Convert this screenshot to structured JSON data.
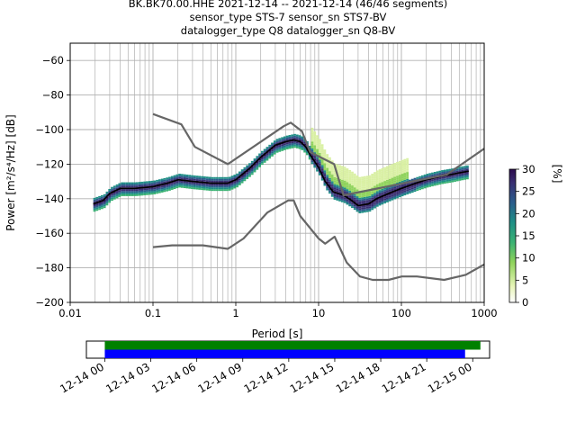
{
  "title": {
    "line1": "BK.BK70.00.HHE   2021-12-14 -- 2021-12-14  (46/46 segments)",
    "line2": "sensor_type STS-7 sensor_sn STS7-BV",
    "line3": "datalogger_type Q8 datalogger_sn Q8-BV"
  },
  "colors": {
    "mode_line": "#000000",
    "noise_model": "#666666",
    "grid": "#b0b0b0",
    "bar_green": "#008000",
    "bar_blue": "#0000ff",
    "colormap": [
      "#ffffff",
      "#d9f0a3",
      "#8fd35b",
      "#3bb273",
      "#1f8f86",
      "#2b5d8c",
      "#3a2f72",
      "#2d0b4e"
    ]
  },
  "chart_data": [
    {
      "type": "heatmap",
      "subtype": "probabilistic power spectral density",
      "xlabel": "Period [s]",
      "ylabel": "Power [m²/s⁴/Hz] [dB]",
      "x_scale": "log",
      "xlim": [
        0.01,
        1000
      ],
      "ylim": [
        -200,
        -50
      ],
      "x_ticks": [
        0.01,
        0.1,
        1,
        10,
        100,
        1000
      ],
      "x_tick_labels": [
        "0.01",
        "0.1",
        "1",
        "10",
        "100",
        "1000"
      ],
      "y_ticks": [
        -200,
        -180,
        -160,
        -140,
        -120,
        -100,
        -80,
        -60
      ],
      "y_tick_labels": [
        "−200",
        "−180",
        "−160",
        "−140",
        "−120",
        "−100",
        "−80",
        "−60"
      ],
      "grid": true,
      "colorbar": {
        "label": "[%]",
        "range": [
          0,
          30
        ],
        "ticks": [
          0,
          5,
          10,
          15,
          20,
          25,
          30
        ],
        "tick_labels": [
          "0",
          "5",
          "10",
          "15",
          "20",
          "25",
          "30"
        ]
      },
      "series": [
        {
          "role": "mode",
          "x": [
            0.019,
            0.025,
            0.03,
            0.04,
            0.06,
            0.1,
            0.15,
            0.2,
            0.3,
            0.5,
            0.8,
            1.0,
            1.5,
            2.0,
            3.0,
            4.0,
            5.0,
            6.0,
            7.0,
            8.0,
            10.0,
            12.0,
            15.0,
            20.0,
            25.0,
            30.0,
            40.0,
            50.0,
            70.0,
            100.0,
            150.0,
            200.0,
            300.0,
            400.0,
            500.0,
            650.0
          ],
          "y": [
            -143,
            -141,
            -137,
            -134,
            -134,
            -133,
            -131,
            -129,
            -130,
            -131,
            -131,
            -129,
            -122,
            -116,
            -109,
            -107,
            -106,
            -107,
            -110,
            -115,
            -122,
            -130,
            -136,
            -138,
            -141,
            -144,
            -143,
            -140,
            -137,
            -134,
            -131,
            -129,
            -127,
            -126,
            -125,
            -124
          ]
        },
        {
          "role": "high noise model",
          "x": [
            0.1,
            0.22,
            0.32,
            0.8,
            3.8,
            4.6,
            6.3,
            7.9,
            15.4,
            20.0,
            354.8,
            1000.0
          ],
          "y": [
            -91,
            -97,
            -110,
            -120,
            -98,
            -96,
            -101,
            -113,
            -120,
            -138,
            -126,
            -111
          ]
        },
        {
          "role": "low noise model",
          "x": [
            0.1,
            0.17,
            0.4,
            0.8,
            1.24,
            2.4,
            4.3,
            5.0,
            6.0,
            10.0,
            12.0,
            15.6,
            21.9,
            31.6,
            45.0,
            70.0,
            101.0,
            154.0,
            328.0,
            600.0,
            1000.0
          ],
          "y": [
            -168,
            -167,
            -167,
            -169,
            -163,
            -148,
            -141,
            -141,
            -150,
            -163,
            -166,
            -162,
            -177,
            -185,
            -187,
            -187,
            -185,
            -185,
            -187,
            -184,
            -178
          ]
        }
      ]
    },
    {
      "type": "bar",
      "subtype": "data coverage timeline",
      "x_tick_labels": [
        "12-14 00",
        "12-14 03",
        "12-14 06",
        "12-14 09",
        "12-14 12",
        "12-14 15",
        "12-14 18",
        "12-14 21",
        "12-15 00"
      ],
      "xlim_hours": [
        -1.2,
        25.1
      ],
      "series": [
        {
          "role": "data available",
          "color": "green",
          "start_hour": 0,
          "end_hour": 24.5
        },
        {
          "role": "PSD segments used",
          "color": "blue",
          "start_hour": 0,
          "end_hour": 23.5
        }
      ]
    }
  ]
}
